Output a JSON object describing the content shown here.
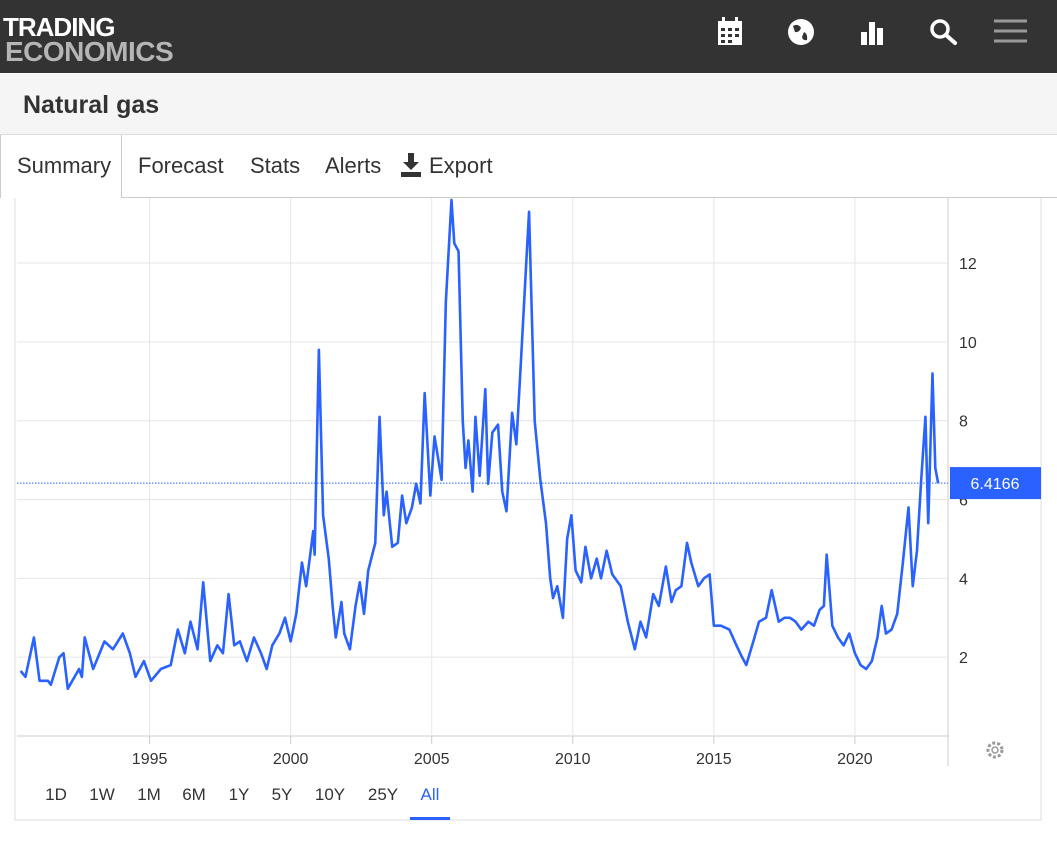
{
  "header": {
    "logo": [
      "TRADING",
      "ECONOMICS"
    ]
  },
  "title": "Natural gas",
  "tabs": [
    "Summary",
    "Forecast",
    "Stats",
    "Alerts",
    "Export"
  ],
  "active_tab": 0,
  "chart_data": {
    "type": "line",
    "color": "#2962ff",
    "x": [
      1990.43,
      1990.6,
      1990.9,
      1991.1,
      1991.4,
      1991.5,
      1991.8,
      1991.95,
      1992.1,
      1992.5,
      1992.6,
      1992.7,
      1993.0,
      1993.4,
      1993.7,
      1994.05,
      1994.3,
      1994.5,
      1994.8,
      1995.05,
      1995.4,
      1995.75,
      1996.0,
      1996.25,
      1996.45,
      1996.7,
      1996.9,
      1997.15,
      1997.4,
      1997.6,
      1997.8,
      1998.0,
      1998.2,
      1998.45,
      1998.7,
      1998.95,
      1999.15,
      1999.35,
      1999.6,
      1999.8,
      2000.0,
      2000.2,
      2000.4,
      2000.55,
      2000.8,
      2000.85,
      2001.0,
      2001.15,
      2001.35,
      2001.5,
      2001.6,
      2001.8,
      2001.9,
      2002.1,
      2002.3,
      2002.45,
      2002.6,
      2002.75,
      2003.0,
      2003.15,
      2003.3,
      2003.4,
      2003.6,
      2003.8,
      2003.95,
      2004.1,
      2004.3,
      2004.45,
      2004.6,
      2004.75,
      2004.95,
      2005.1,
      2005.35,
      2005.5,
      2005.7,
      2005.8,
      2005.95,
      2006.1,
      2006.2,
      2006.3,
      2006.45,
      2006.55,
      2006.7,
      2006.9,
      2007.0,
      2007.15,
      2007.35,
      2007.5,
      2007.65,
      2007.85,
      2008.0,
      2008.2,
      2008.35,
      2008.45,
      2008.65,
      2008.85,
      2009.05,
      2009.2,
      2009.3,
      2009.45,
      2009.65,
      2009.8,
      2009.95,
      2010.1,
      2010.3,
      2010.45,
      2010.65,
      2010.85,
      2011.0,
      2011.2,
      2011.4,
      2011.7,
      2011.95,
      2012.2,
      2012.4,
      2012.6,
      2012.85,
      2013.05,
      2013.3,
      2013.5,
      2013.65,
      2013.85,
      2014.05,
      2014.2,
      2014.45,
      2014.65,
      2014.85,
      2015.0,
      2015.25,
      2015.55,
      2015.8,
      2016.0,
      2016.15,
      2016.4,
      2016.6,
      2016.85,
      2017.05,
      2017.3,
      2017.5,
      2017.7,
      2017.9,
      2018.1,
      2018.35,
      2018.55,
      2018.75,
      2018.9,
      2019.0,
      2019.2,
      2019.4,
      2019.6,
      2019.8,
      2020.0,
      2020.2,
      2020.4,
      2020.6,
      2020.8,
      2020.95,
      2021.1,
      2021.3,
      2021.5,
      2021.7,
      2021.9,
      2022.05,
      2022.2,
      2022.35,
      2022.5,
      2022.6,
      2022.75,
      2022.85,
      2022.95
    ],
    "values": [
      1.65,
      1.5,
      2.5,
      1.4,
      1.4,
      1.3,
      2.0,
      2.1,
      1.2,
      1.7,
      1.5,
      2.5,
      1.7,
      2.4,
      2.2,
      2.6,
      2.1,
      1.5,
      1.9,
      1.4,
      1.7,
      1.8,
      2.7,
      2.1,
      2.9,
      2.2,
      3.9,
      1.9,
      2.3,
      2.1,
      3.6,
      2.3,
      2.4,
      1.9,
      2.5,
      2.1,
      1.7,
      2.3,
      2.6,
      3.0,
      2.4,
      3.1,
      4.4,
      3.8,
      5.2,
      4.6,
      9.8,
      5.6,
      4.5,
      3.2,
      2.5,
      3.4,
      2.6,
      2.2,
      3.3,
      3.9,
      3.1,
      4.2,
      4.9,
      8.1,
      5.6,
      6.2,
      4.8,
      4.9,
      6.1,
      5.4,
      5.8,
      6.4,
      5.9,
      8.7,
      6.1,
      7.6,
      6.5,
      11.0,
      13.6,
      12.5,
      12.3,
      8.0,
      6.8,
      7.5,
      6.2,
      8.1,
      6.6,
      8.8,
      6.4,
      7.7,
      7.9,
      6.2,
      5.7,
      8.2,
      7.4,
      10.0,
      12.0,
      13.3,
      8.0,
      6.5,
      5.4,
      4.0,
      3.5,
      3.8,
      3.0,
      5.0,
      5.6,
      4.2,
      3.9,
      4.8,
      4.0,
      4.5,
      4.0,
      4.7,
      4.1,
      3.8,
      2.9,
      2.2,
      2.9,
      2.5,
      3.6,
      3.3,
      4.3,
      3.4,
      3.7,
      3.8,
      4.9,
      4.4,
      3.8,
      4.0,
      4.1,
      2.8,
      2.8,
      2.7,
      2.3,
      2.0,
      1.8,
      2.4,
      2.9,
      3.0,
      3.7,
      2.9,
      3.0,
      3.0,
      2.9,
      2.7,
      2.9,
      2.8,
      3.2,
      3.3,
      4.6,
      2.8,
      2.5,
      2.3,
      2.6,
      2.1,
      1.8,
      1.7,
      1.9,
      2.5,
      3.3,
      2.6,
      2.7,
      3.1,
      4.4,
      5.8,
      3.8,
      4.7,
      6.5,
      8.1,
      5.4,
      9.2,
      6.8,
      6.4166
    ],
    "last_value": 6.4166,
    "xlim": [
      1990.3,
      2023.3
    ],
    "xticks": [
      1995,
      2000,
      2005,
      2010,
      2015,
      2020
    ],
    "ylim": [
      0,
      13.65
    ],
    "yticks": [
      2,
      4,
      6,
      8,
      10,
      12
    ],
    "grid": true
  },
  "ranges": [
    "1D",
    "1W",
    "1M",
    "6M",
    "1Y",
    "5Y",
    "10Y",
    "25Y",
    "All"
  ],
  "active_range": 8
}
